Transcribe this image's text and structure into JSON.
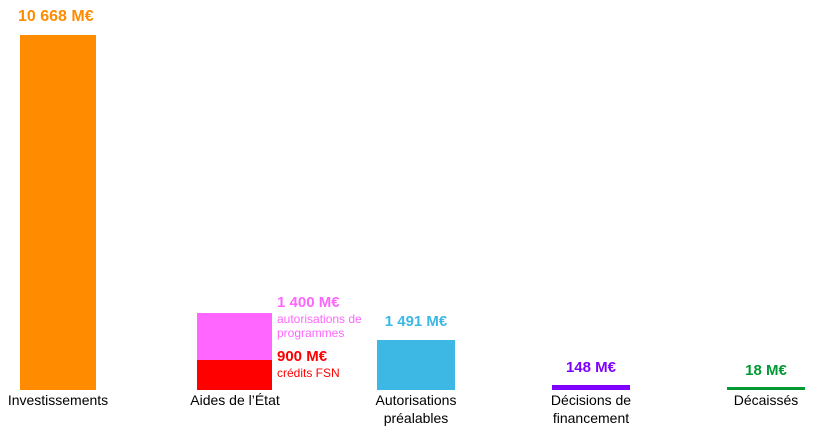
{
  "chart_data": {
    "type": "bar",
    "title": "",
    "xlabel": "",
    "ylabel": "",
    "unit": "M€",
    "ylim": [
      0,
      10668
    ],
    "grid": false,
    "legend": "none",
    "background": "#FFFFFF",
    "categories": [
      "Investissements",
      "Aides de l’État",
      "Autorisations\npréalables",
      "Décisions de\nfinancement",
      "Décaissés"
    ],
    "bars": [
      {
        "category": "Investissements",
        "total": 10668,
        "value_label": "10 668 M€",
        "color": "#FF8C00",
        "segments": [
          {
            "name": "investissements",
            "value": 10668,
            "color": "#FF8C00"
          }
        ]
      },
      {
        "category": "Aides de l’État",
        "total": 2300,
        "segments": [
          {
            "name": "autorisations de programmes",
            "value": 1400,
            "color": "#FF66FF",
            "value_label": "1 400 M€",
            "sublabel": "autorisations de\nprogrammes"
          },
          {
            "name": "crédits FSN",
            "value": 900,
            "color": "#FF0000",
            "value_label": "900 M€",
            "sublabel": "crédits FSN"
          }
        ]
      },
      {
        "category": "Autorisations préalables",
        "total": 1491,
        "value_label": "1 491 M€",
        "color": "#3DB7E4",
        "segments": [
          {
            "name": "autorisations préalables",
            "value": 1491,
            "color": "#3DB7E4"
          }
        ]
      },
      {
        "category": "Décisions de financement",
        "total": 148,
        "value_label": "148 M€",
        "color": "#7F00FF",
        "segments": [
          {
            "name": "décisions de financement",
            "value": 148,
            "color": "#7F00FF"
          }
        ]
      },
      {
        "category": "Décaissés",
        "total": 18,
        "value_label": "18 M€",
        "color": "#009933",
        "segments": [
          {
            "name": "décaissés",
            "value": 18,
            "color": "#009933"
          }
        ]
      }
    ]
  }
}
